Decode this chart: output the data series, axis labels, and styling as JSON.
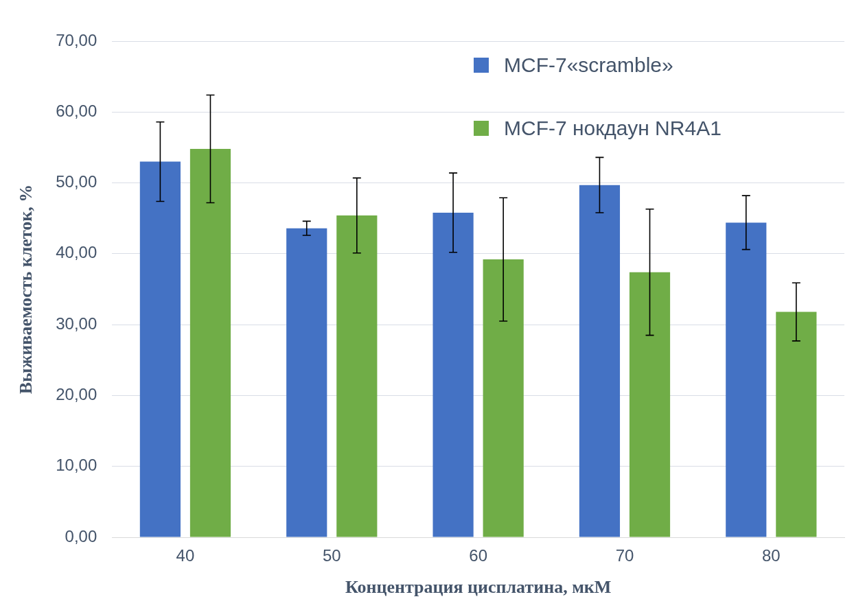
{
  "chart_data": {
    "type": "bar",
    "xlabel": "Концентрация цисплатина, мкМ",
    "ylabel": "Выживаемость клеток, %",
    "categories": [
      "40",
      "50",
      "60",
      "70",
      "80"
    ],
    "series": [
      {
        "name": "MCF-7«scramble»",
        "color": "#4472c4",
        "values": [
          53.0,
          43.6,
          45.8,
          49.7,
          44.4
        ],
        "errors": [
          5.6,
          1.0,
          5.6,
          3.9,
          3.8
        ]
      },
      {
        "name": "MCF-7 нокдаун NR4A1",
        "color": "#70ad47",
        "values": [
          54.8,
          45.4,
          39.2,
          37.4,
          31.8
        ],
        "errors": [
          7.6,
          5.3,
          8.7,
          8.9,
          4.1
        ]
      }
    ],
    "ylim": [
      0,
      70
    ],
    "yticks": [
      {
        "value": 0,
        "label": "0,00"
      },
      {
        "value": 10,
        "label": "10,00"
      },
      {
        "value": 20,
        "label": "20,00"
      },
      {
        "value": 30,
        "label": "30,00"
      },
      {
        "value": 40,
        "label": "40,00"
      },
      {
        "value": 50,
        "label": "50,00"
      },
      {
        "value": 60,
        "label": "60,00"
      },
      {
        "value": 70,
        "label": "70,00"
      }
    ],
    "grid": "y",
    "legend": "top right"
  }
}
